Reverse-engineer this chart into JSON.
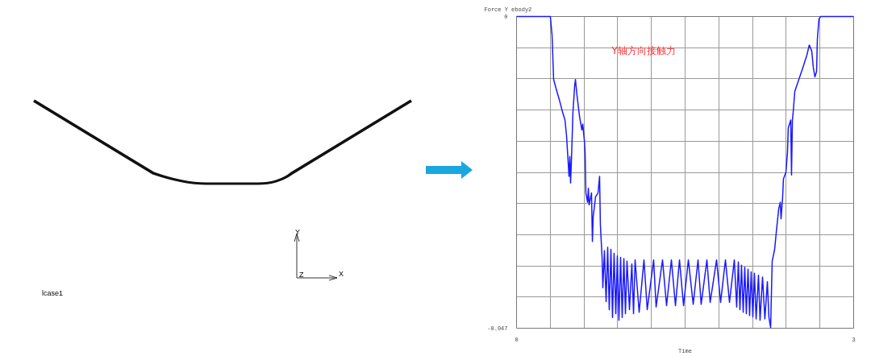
{
  "chart_data": [
    {
      "type": "other",
      "annotations": [
        "lcase1",
        "Y",
        "X",
        "Z"
      ]
    },
    {
      "type": "line",
      "title": "Force Y ebody2",
      "xlabel": "Time",
      "annotations": [
        "Y轴方向接触力"
      ],
      "xlim": [
        0,
        3
      ],
      "ylim": [
        -0.047,
        0
      ],
      "xticks": [
        0,
        {
          "value": 0.3,
          "label": null
        },
        {
          "value": 0.6,
          "label": null
        },
        {
          "value": 0.9,
          "label": null
        },
        {
          "value": 1.2,
          "label": null
        },
        {
          "value": 1.5,
          "label": null
        },
        {
          "value": 1.8,
          "label": null
        },
        {
          "value": 2.1,
          "label": null
        },
        {
          "value": 2.4,
          "label": null
        },
        {
          "value": 2.7,
          "label": null
        },
        3
      ],
      "yticks": [
        {
          "value": -0.047,
          "label": "-0.047"
        },
        {
          "value": -0.0423,
          "label": null
        },
        {
          "value": -0.0376,
          "label": null
        },
        {
          "value": -0.0329,
          "label": null
        },
        {
          "value": -0.0282,
          "label": null
        },
        {
          "value": -0.0235,
          "label": null
        },
        {
          "value": -0.0188,
          "label": null
        },
        {
          "value": -0.0141,
          "label": null
        },
        {
          "value": -0.0094,
          "label": null
        },
        {
          "value": -0.0047,
          "label": null
        },
        0
      ],
      "grid": true,
      "marker": "none",
      "line_style": "solid",
      "series": [
        {
          "color": "#1a1aff",
          "x": [
            0,
            0.301,
            0.316,
            0.33,
            0.359,
            0.38,
            0.409,
            0.431,
            0.445,
            0.459,
            0.467,
            0.474,
            0.481,
            0.488,
            0.502,
            0.517,
            0.524,
            0.538,
            0.56,
            0.581,
            0.589,
            0.603,
            0.61,
            0.617,
            0.632,
            0.639,
            0.646,
            0.667,
            0.675,
            0.682,
            0.703,
            0.725,
            0.739,
            0.746,
            0.761,
            0.768,
            0.782,
            0.797,
            0.811,
            0.825,
            0.84,
            0.854,
            0.868,
            0.883,
            0.897,
            0.911,
            0.926,
            0.94,
            0.955,
            0.969,
            0.983,
            1.005,
            1.026,
            1.041,
            1.055,
            1.091,
            1.134,
            1.163,
            1.22,
            1.242,
            1.299,
            1.335,
            1.378,
            1.414,
            1.45,
            1.486,
            1.529,
            1.572,
            1.615,
            1.643,
            1.694,
            1.723,
            1.78,
            1.816,
            1.859,
            1.895,
            1.938,
            1.959,
            1.974,
            1.988,
            2.002,
            2.017,
            2.031,
            2.045,
            2.06,
            2.074,
            2.088,
            2.103,
            2.117,
            2.132,
            2.153,
            2.167,
            2.189,
            2.21,
            2.232,
            2.246,
            2.261,
            2.275,
            2.297,
            2.311,
            2.333,
            2.347,
            2.354,
            2.368,
            2.375,
            2.397,
            2.411,
            2.418,
            2.44,
            2.447,
            2.455,
            2.462,
            2.476,
            2.512,
            2.548,
            2.584,
            2.605,
            2.627,
            2.641,
            2.655,
            2.67,
            2.677,
            2.691,
            2.706,
            3.0
          ],
          "values": [
            0,
            0,
            -0.0028,
            -0.0095,
            -0.0113,
            -0.0125,
            -0.0144,
            -0.0156,
            -0.018,
            -0.0219,
            -0.0241,
            -0.0211,
            -0.0251,
            -0.0219,
            -0.0144,
            -0.0105,
            -0.0095,
            -0.0119,
            -0.015,
            -0.0171,
            -0.0162,
            -0.0186,
            -0.0205,
            -0.0266,
            -0.028,
            -0.0259,
            -0.0284,
            -0.0266,
            -0.0339,
            -0.0302,
            -0.0272,
            -0.0266,
            -0.0241,
            -0.0314,
            -0.0363,
            -0.0409,
            -0.0353,
            -0.043,
            -0.0348,
            -0.0442,
            -0.0351,
            -0.0454,
            -0.0357,
            -0.0448,
            -0.0361,
            -0.0458,
            -0.0363,
            -0.0454,
            -0.0365,
            -0.0448,
            -0.0369,
            -0.0442,
            -0.0373,
            -0.0448,
            -0.0367,
            -0.0446,
            -0.0367,
            -0.0442,
            -0.0367,
            -0.0438,
            -0.0367,
            -0.0436,
            -0.0367,
            -0.0436,
            -0.0367,
            -0.0436,
            -0.0367,
            -0.0434,
            -0.0367,
            -0.0434,
            -0.0367,
            -0.0431,
            -0.0367,
            -0.0431,
            -0.0367,
            -0.0431,
            -0.0367,
            -0.0438,
            -0.037,
            -0.0442,
            -0.0375,
            -0.0446,
            -0.0378,
            -0.0448,
            -0.0381,
            -0.0451,
            -0.0385,
            -0.0453,
            -0.0387,
            -0.0456,
            -0.039,
            -0.0458,
            -0.0393,
            -0.0456,
            -0.04,
            -0.0454,
            -0.0469,
            -0.0369,
            -0.0351,
            -0.0326,
            -0.029,
            -0.028,
            -0.0305,
            -0.0272,
            -0.0245,
            -0.0235,
            -0.0205,
            -0.0168,
            -0.0156,
            -0.0239,
            -0.0156,
            -0.0144,
            -0.0113,
            -0.0095,
            -0.0077,
            -0.0058,
            -0.0043,
            -0.0052,
            -0.0077,
            -0.0091,
            -0.0083,
            -0.0034,
            -0.0004,
            0,
            0
          ]
        }
      ]
    }
  ]
}
